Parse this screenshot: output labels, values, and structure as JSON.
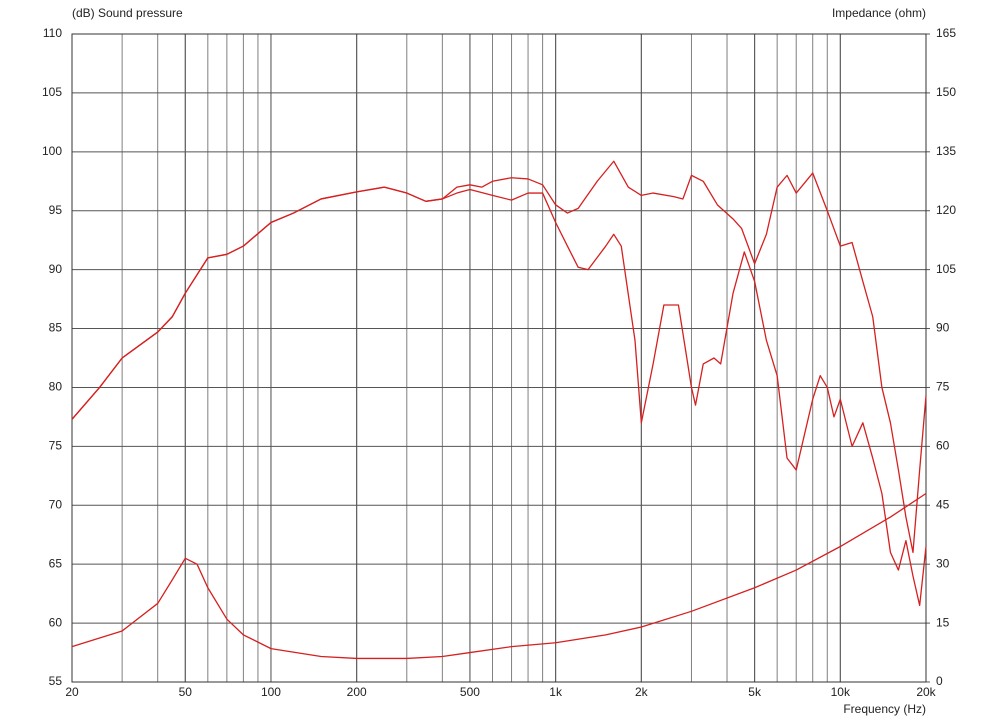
{
  "chart_data": {
    "type": "line",
    "y_label": "(dB)  Sound pressure",
    "y2_label": "Impedance  (ohm)",
    "x_label": "Frequency  (Hz)",
    "xscale": "log",
    "grid": true,
    "xlim": [
      20,
      20000
    ],
    "xticks": [
      20,
      50,
      100,
      200,
      500,
      {
        "value": 1000,
        "label": "1k"
      },
      {
        "value": 2000,
        "label": "2k"
      },
      {
        "value": 5000,
        "label": "5k"
      },
      {
        "value": 10000,
        "label": "10k"
      },
      {
        "value": 20000,
        "label": "20k"
      }
    ],
    "ylim": [
      55,
      110
    ],
    "yticks": [
      55,
      60,
      65,
      70,
      75,
      80,
      85,
      90,
      95,
      100,
      105,
      110
    ],
    "y2lim": [
      0,
      165
    ],
    "y2ticks": [
      0,
      15,
      30,
      45,
      60,
      75,
      90,
      105,
      120,
      135,
      150,
      165
    ],
    "series": [
      {
        "color": "#d62020",
        "x": [
          20,
          25,
          30,
          40,
          45,
          50,
          60,
          70,
          80,
          100,
          120,
          150,
          200,
          250,
          300,
          350,
          400,
          450,
          500,
          550,
          600,
          700,
          800,
          900,
          1000,
          1100,
          1200,
          1400,
          1600,
          1800,
          2000,
          2200,
          2600,
          2800,
          3000,
          3300,
          3700,
          4200,
          4500,
          5000,
          5500,
          6000,
          6500,
          7000,
          8000,
          9000,
          10000,
          11000,
          12000,
          13000,
          14000,
          15000,
          16000,
          17000,
          18000,
          19000,
          20000
        ],
        "values": [
          77.3,
          80,
          82.5,
          84.7,
          86,
          88,
          91,
          91.3,
          92,
          94,
          94.8,
          96,
          96.6,
          97,
          96.5,
          95.8,
          96,
          97,
          97.2,
          97,
          97.5,
          97.8,
          97.7,
          97.2,
          95.5,
          94.8,
          95.2,
          97.5,
          99.2,
          97,
          96.3,
          96.5,
          96.2,
          96,
          98,
          97.5,
          95.5,
          94.3,
          93.5,
          90.5,
          93,
          97,
          98,
          96.5,
          98.2,
          95,
          92,
          92.3,
          89,
          86,
          80,
          77,
          73,
          69,
          66,
          73,
          79.3
        ]
      },
      {
        "color": "#d62020",
        "x": [
          20,
          25,
          30,
          40,
          45,
          50,
          60,
          70,
          80,
          100,
          120,
          150,
          200,
          250,
          300,
          350,
          400,
          450,
          500,
          600,
          700,
          800,
          900,
          1000,
          1100,
          1200,
          1300,
          1500,
          1600,
          1700,
          1900,
          2000,
          2200,
          2400,
          2700,
          3000,
          3100,
          3300,
          3600,
          3800,
          4200,
          4600,
          5000,
          5500,
          6000,
          6500,
          7000,
          8000,
          8500,
          9000,
          9500,
          10000,
          11000,
          12000,
          13000,
          14000,
          15000,
          16000,
          17000,
          18000,
          19000,
          20000
        ],
        "values": [
          77.3,
          80,
          82.5,
          84.7,
          86,
          88,
          91,
          91.3,
          92,
          94,
          94.8,
          96,
          96.6,
          97,
          96.5,
          95.8,
          96,
          96.5,
          96.8,
          96.3,
          95.9,
          96.5,
          96.5,
          94,
          92,
          90.2,
          90,
          92,
          93,
          92,
          84,
          77,
          82,
          87,
          87,
          80,
          78.5,
          82,
          82.5,
          82,
          88,
          91.5,
          89,
          84,
          81,
          74,
          73,
          79,
          81,
          80,
          77.5,
          79,
          75,
          77,
          74,
          71,
          66,
          64.5,
          67,
          64,
          61.5,
          66.5
        ]
      },
      {
        "color": "#d62020",
        "axis": "y2",
        "x": [
          20,
          30,
          40,
          45,
          50,
          55,
          60,
          70,
          80,
          100,
          150,
          200,
          300,
          400,
          500,
          700,
          1000,
          1500,
          2000,
          3000,
          5000,
          7000,
          10000,
          15000,
          20000
        ],
        "values": [
          9,
          13,
          20,
          26,
          31.5,
          30,
          24,
          16,
          12,
          8.5,
          6.5,
          6,
          6,
          6.5,
          7.5,
          9,
          10,
          12,
          14,
          18,
          24,
          28.5,
          34.5,
          42,
          48
        ]
      }
    ]
  }
}
